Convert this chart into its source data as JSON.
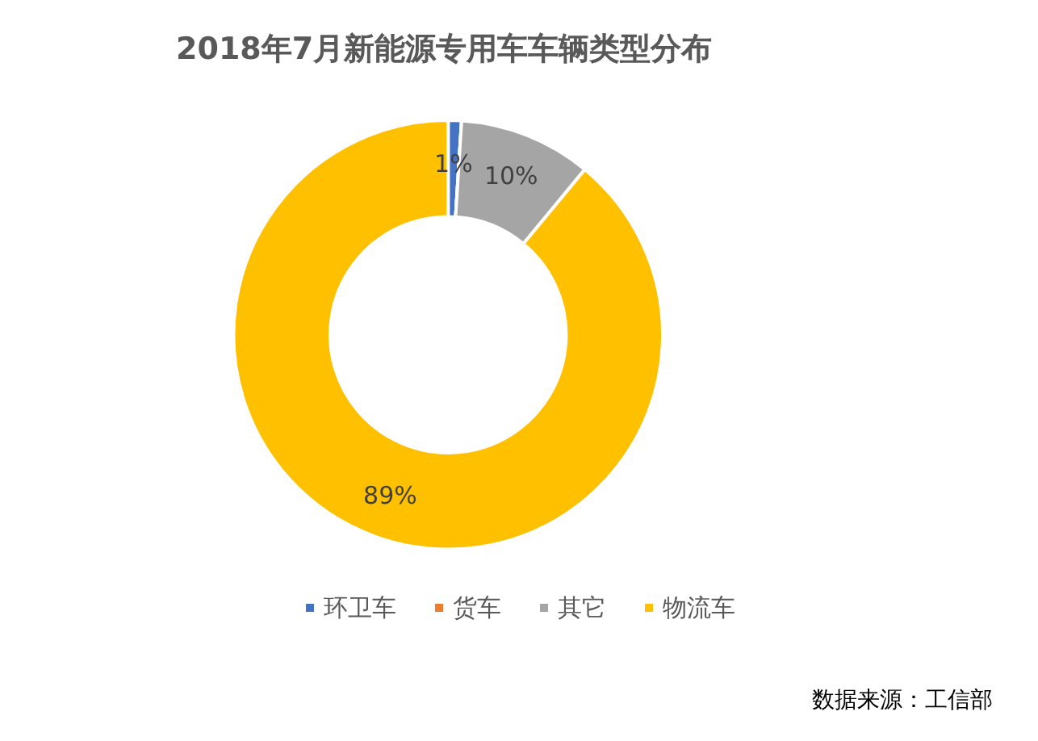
{
  "chart_data": {
    "type": "donut",
    "title": "2018年7月新能源专用车车辆类型分布",
    "categories": [
      "环卫车",
      "货车",
      "其它",
      "物流车"
    ],
    "values": [
      1,
      0,
      10,
      89
    ],
    "value_labels": [
      "1%",
      null,
      "10%",
      "89%"
    ],
    "colors": [
      "#4472c4",
      "#ed7d31",
      "#a5a5a5",
      "#ffc000"
    ],
    "legend": "bottom",
    "annotations": [
      "数据来源：工信部"
    ]
  }
}
